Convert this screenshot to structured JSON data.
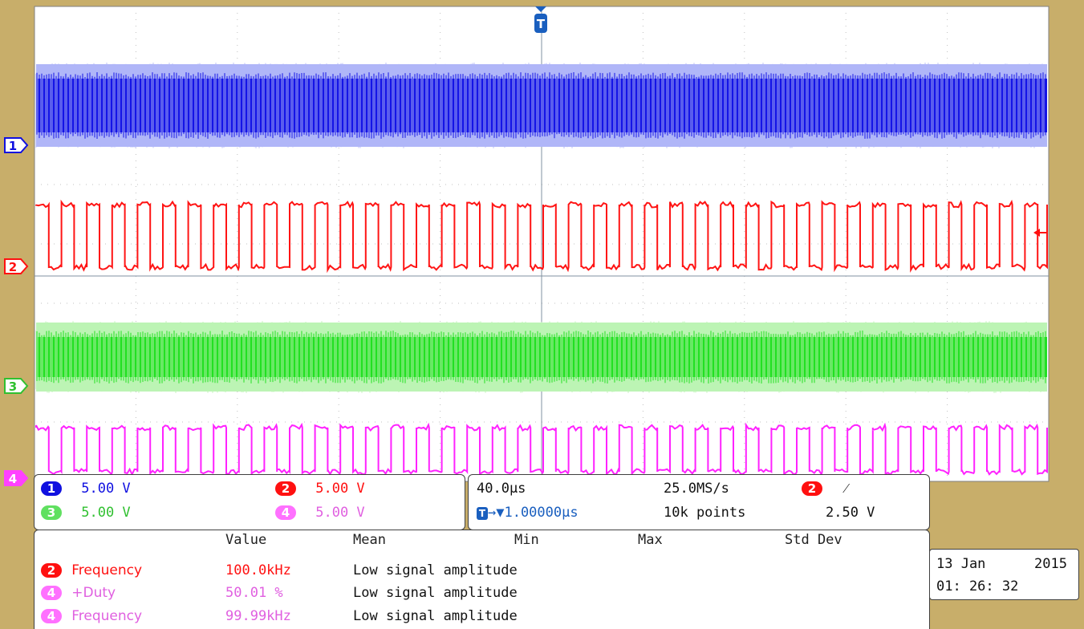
{
  "trigger": {
    "marker": "T"
  },
  "channels": [
    {
      "id": "1",
      "color": "#1010E0",
      "light": "#AAB0F8",
      "scale": "5.00 V",
      "text_color": "#1010E0"
    },
    {
      "id": "2",
      "color": "#FF1010",
      "scale": "5.00 V",
      "text_color": "#FF1010"
    },
    {
      "id": "3",
      "color": "#20E020",
      "light": "#B8F4B0",
      "scale": "5.00 V",
      "text_color": "#30C030"
    },
    {
      "id": "4",
      "color": "#FF20FF",
      "scale": "5.00 V",
      "text_color": "#E060E0"
    }
  ],
  "timebase": {
    "horizontal_scale": "40.0µs",
    "sample_rate": "25.0MS/s",
    "record_length": "10k points",
    "position_prefix": "T",
    "position": "→▼1.00000µs",
    "trigger_source": "2",
    "trigger_slope": "⁄",
    "trigger_level": "2.50 V"
  },
  "measurements": {
    "headers": [
      "Value",
      "Mean",
      "Min",
      "Max",
      "Std Dev"
    ],
    "rows": [
      {
        "channel": "2",
        "name": "Frequency",
        "value": "100.0kHz",
        "mean": "Low signal amplitude",
        "badge_color": "#FF1010",
        "text_color": "#FF1010"
      },
      {
        "channel": "4",
        "name": "+Duty",
        "value": "50.01 %",
        "mean": "Low signal amplitude",
        "badge_color": "#FF70FF",
        "text_color": "#E060E0"
      },
      {
        "channel": "4",
        "name": "Frequency",
        "value": "99.99kHz",
        "mean": "Low signal amplitude",
        "badge_color": "#FF70FF",
        "text_color": "#E060E0"
      }
    ]
  },
  "datetime": {
    "day_month": "13 Jan",
    "year": "2015",
    "time": "01: 26: 32"
  }
}
